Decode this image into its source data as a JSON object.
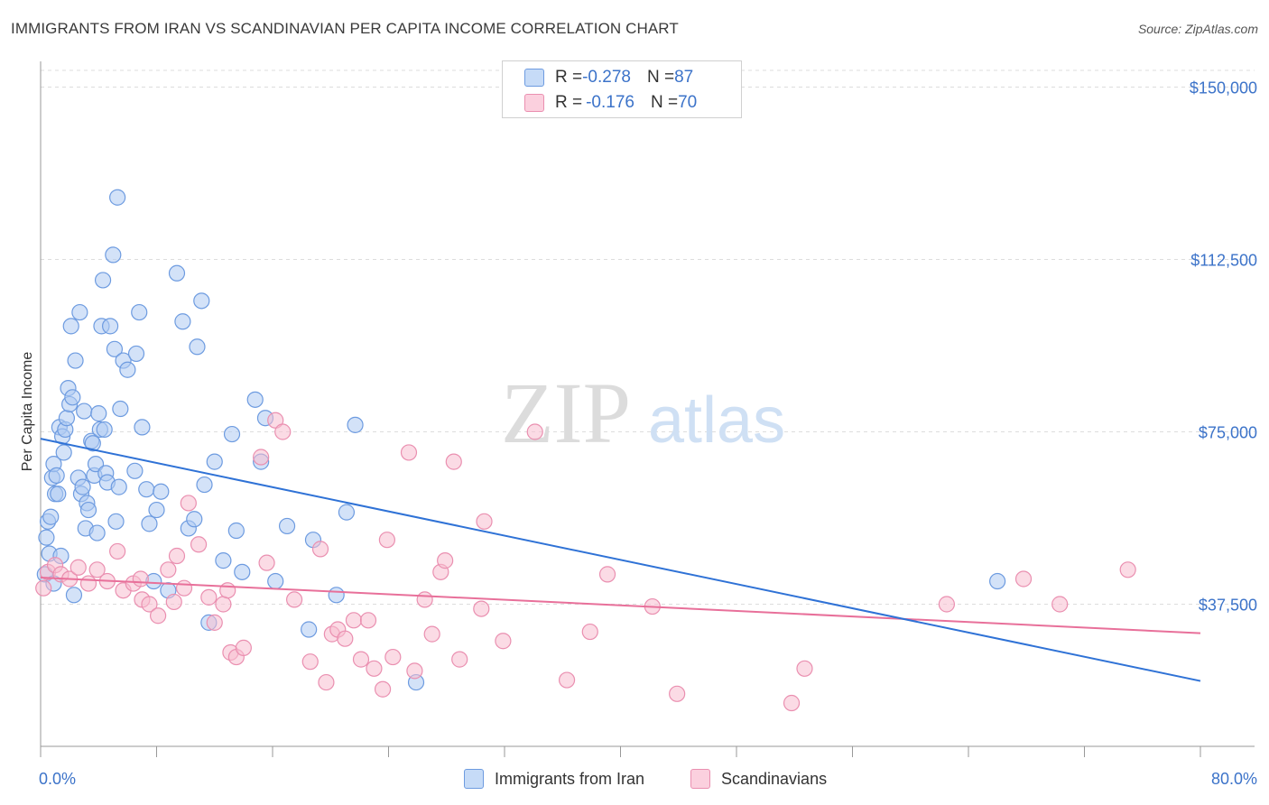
{
  "header": {
    "title": "IMMIGRANTS FROM IRAN VS SCANDINAVIAN PER CAPITA INCOME CORRELATION CHART",
    "source": "Source: ZipAtlas.com"
  },
  "watermark": {
    "zip": "ZIP",
    "atlas": "atlas"
  },
  "legend": {
    "rows": [
      {
        "r_label": "R = ",
        "r_value": "-0.278",
        "n_label": "N = ",
        "n_value": "87"
      },
      {
        "r_label": "R = ",
        "r_value": "-0.176",
        "n_label": "N = ",
        "n_value": "70"
      }
    ]
  },
  "colors": {
    "blue_fill": "#aecbf3",
    "blue_stroke": "#6d9be0",
    "blue_line": "#2f72d6",
    "pink_fill": "#f7bdd0",
    "pink_stroke": "#ea8fb0",
    "pink_line": "#e8709a",
    "axis_text": "#3c73c9",
    "grid": "#dddddd"
  },
  "chart_data": {
    "type": "scatter",
    "xlabel": "",
    "ylabel": "Per Capita Income",
    "xlim": [
      0,
      80
    ],
    "ylim": [
      0,
      150000
    ],
    "x_tick_labels": [
      "0.0%",
      "80.0%"
    ],
    "y_ticks": [
      37500,
      75000,
      112500,
      150000
    ],
    "y_tick_labels": [
      "$37,500",
      "$75,000",
      "$112,500",
      "$150,000"
    ],
    "grid": "horizontal dashed",
    "legend_position": "top-center",
    "series": [
      {
        "name": "Immigrants from Iran",
        "color": "#6d9be0",
        "trend": {
          "x": [
            0,
            80
          ],
          "y": [
            73500,
            20800
          ]
        },
        "points": [
          [
            0.3,
            44000
          ],
          [
            0.4,
            52000
          ],
          [
            0.5,
            55500
          ],
          [
            0.6,
            48500
          ],
          [
            0.7,
            56500
          ],
          [
            0.8,
            65000
          ],
          [
            0.9,
            68000
          ],
          [
            1.0,
            61500
          ],
          [
            1.1,
            65500
          ],
          [
            1.2,
            61500
          ],
          [
            1.3,
            76000
          ],
          [
            1.5,
            74000
          ],
          [
            1.6,
            70500
          ],
          [
            1.7,
            75500
          ],
          [
            1.8,
            78000
          ],
          [
            1.9,
            84500
          ],
          [
            2.0,
            81000
          ],
          [
            2.1,
            98000
          ],
          [
            2.2,
            82500
          ],
          [
            2.4,
            90500
          ],
          [
            2.6,
            65000
          ],
          [
            2.7,
            101000
          ],
          [
            2.8,
            61500
          ],
          [
            2.9,
            63000
          ],
          [
            3.0,
            79500
          ],
          [
            3.1,
            54000
          ],
          [
            3.2,
            59500
          ],
          [
            3.3,
            58000
          ],
          [
            3.5,
            73000
          ],
          [
            3.6,
            72500
          ],
          [
            3.7,
            65500
          ],
          [
            3.8,
            68000
          ],
          [
            4.0,
            79000
          ],
          [
            4.1,
            75500
          ],
          [
            4.2,
            98000
          ],
          [
            4.3,
            108000
          ],
          [
            4.4,
            75500
          ],
          [
            4.5,
            66000
          ],
          [
            4.6,
            64000
          ],
          [
            4.8,
            98000
          ],
          [
            5.0,
            113500
          ],
          [
            5.1,
            93000
          ],
          [
            5.2,
            55500
          ],
          [
            5.3,
            126000
          ],
          [
            5.4,
            63000
          ],
          [
            5.5,
            80000
          ],
          [
            5.7,
            90500
          ],
          [
            6.0,
            88500
          ],
          [
            6.5,
            66500
          ],
          [
            6.6,
            92000
          ],
          [
            6.8,
            101000
          ],
          [
            7.0,
            76000
          ],
          [
            7.3,
            62500
          ],
          [
            7.5,
            55000
          ],
          [
            7.8,
            42500
          ],
          [
            8.0,
            58000
          ],
          [
            8.3,
            62000
          ],
          [
            9.4,
            109500
          ],
          [
            9.8,
            99000
          ],
          [
            10.2,
            54000
          ],
          [
            10.6,
            56000
          ],
          [
            10.8,
            93500
          ],
          [
            11.1,
            103500
          ],
          [
            11.3,
            63500
          ],
          [
            11.6,
            33500
          ],
          [
            12.0,
            68500
          ],
          [
            12.6,
            47000
          ],
          [
            13.2,
            74500
          ],
          [
            13.5,
            53500
          ],
          [
            13.9,
            44500
          ],
          [
            14.8,
            82000
          ],
          [
            15.2,
            68500
          ],
          [
            15.5,
            78000
          ],
          [
            16.2,
            42500
          ],
          [
            17.0,
            54500
          ],
          [
            18.5,
            32000
          ],
          [
            18.8,
            51500
          ],
          [
            20.4,
            39500
          ],
          [
            21.1,
            57500
          ],
          [
            21.7,
            76500
          ],
          [
            25.9,
            20500
          ],
          [
            66.0,
            42500
          ],
          [
            1.4,
            48000
          ],
          [
            2.3,
            39500
          ],
          [
            0.9,
            42000
          ],
          [
            3.9,
            53000
          ],
          [
            8.8,
            40500
          ]
        ]
      },
      {
        "name": "Scandinavians",
        "color": "#ea8fb0",
        "trend": {
          "x": [
            0,
            80
          ],
          "y": [
            43300,
            31200
          ]
        },
        "points": [
          [
            0.2,
            41000
          ],
          [
            0.5,
            44500
          ],
          [
            1.0,
            46000
          ],
          [
            1.4,
            44000
          ],
          [
            2.0,
            43000
          ],
          [
            2.6,
            45500
          ],
          [
            3.3,
            42000
          ],
          [
            3.9,
            45000
          ],
          [
            4.6,
            42500
          ],
          [
            5.3,
            49000
          ],
          [
            5.7,
            40500
          ],
          [
            6.4,
            42000
          ],
          [
            7.0,
            38500
          ],
          [
            7.5,
            37500
          ],
          [
            8.1,
            35000
          ],
          [
            8.8,
            45000
          ],
          [
            9.4,
            48000
          ],
          [
            9.9,
            41000
          ],
          [
            10.2,
            59500
          ],
          [
            10.9,
            50500
          ],
          [
            11.6,
            39000
          ],
          [
            12.0,
            33500
          ],
          [
            12.6,
            37500
          ],
          [
            12.9,
            40500
          ],
          [
            13.1,
            27000
          ],
          [
            13.5,
            26000
          ],
          [
            14.0,
            28000
          ],
          [
            15.2,
            69500
          ],
          [
            15.6,
            46500
          ],
          [
            16.2,
            77500
          ],
          [
            16.7,
            75000
          ],
          [
            17.5,
            38500
          ],
          [
            18.6,
            25000
          ],
          [
            19.3,
            49500
          ],
          [
            19.7,
            20500
          ],
          [
            20.1,
            31000
          ],
          [
            20.5,
            32000
          ],
          [
            21.0,
            30000
          ],
          [
            21.6,
            34000
          ],
          [
            22.1,
            25500
          ],
          [
            22.6,
            34000
          ],
          [
            23.0,
            23500
          ],
          [
            23.6,
            19000
          ],
          [
            23.9,
            51500
          ],
          [
            24.3,
            26000
          ],
          [
            25.4,
            70500
          ],
          [
            25.8,
            23000
          ],
          [
            26.5,
            38500
          ],
          [
            27.0,
            31000
          ],
          [
            27.6,
            44500
          ],
          [
            27.9,
            47000
          ],
          [
            28.5,
            68500
          ],
          [
            28.9,
            25500
          ],
          [
            30.4,
            36500
          ],
          [
            30.6,
            55500
          ],
          [
            31.9,
            29500
          ],
          [
            34.1,
            75000
          ],
          [
            36.3,
            21000
          ],
          [
            37.9,
            31500
          ],
          [
            39.1,
            44000
          ],
          [
            42.2,
            37000
          ],
          [
            43.9,
            18000
          ],
          [
            51.8,
            16000
          ],
          [
            52.7,
            23500
          ],
          [
            62.5,
            37500
          ],
          [
            67.8,
            43000
          ],
          [
            70.3,
            37500
          ],
          [
            75.0,
            45000
          ],
          [
            9.2,
            38000
          ],
          [
            6.9,
            43000
          ]
        ]
      }
    ]
  },
  "bottom_legend": {
    "items": [
      {
        "label": "Immigrants from Iran"
      },
      {
        "label": "Scandinavians"
      }
    ]
  }
}
